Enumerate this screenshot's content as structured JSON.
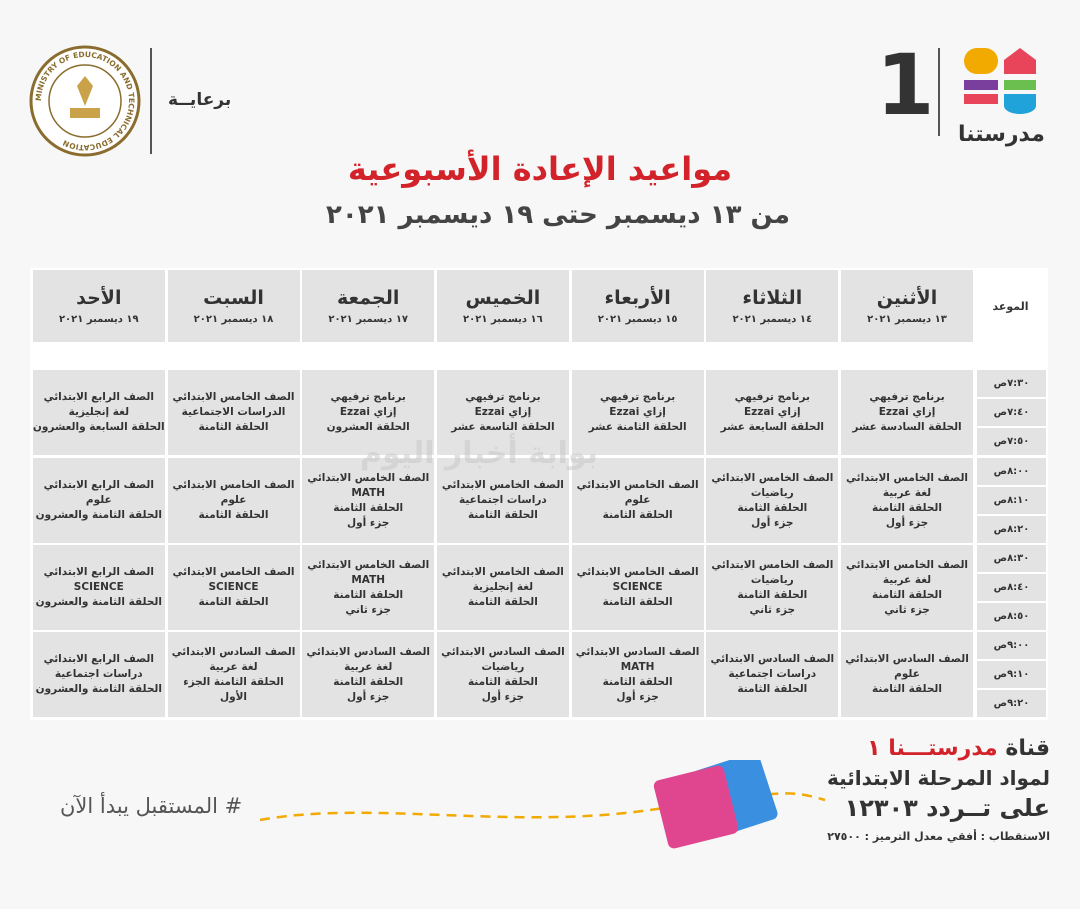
{
  "header": {
    "logo_number": "1",
    "logo_text": "مدرستنا",
    "sponsor": "برعايــة",
    "emblem_text": "MINISTRY OF EDUCATION AND TECHNICAL EDUCATION",
    "title": "مواعيد الإعادة الأسبوعية",
    "subtitle": "من ١٣ ديسمبر حتى ١٩ ديسمبر ٢٠٢١"
  },
  "table": {
    "time_header": "الموعد",
    "days": [
      {
        "name": "الأثنين",
        "date": "١٣ ديسمبر ٢٠٢١"
      },
      {
        "name": "الثلاثاء",
        "date": "١٤ ديسمبر ٢٠٢١"
      },
      {
        "name": "الأربعاء",
        "date": "١٥ ديسمبر ٢٠٢١"
      },
      {
        "name": "الخميس",
        "date": "١٦ ديسمبر ٢٠٢١"
      },
      {
        "name": "الجمعة",
        "date": "١٧ ديسمبر ٢٠٢١"
      },
      {
        "name": "السبت",
        "date": "١٨ ديسمبر ٢٠٢١"
      },
      {
        "name": "الأحد",
        "date": "١٩ ديسمبر ٢٠٢١"
      }
    ],
    "times": [
      "٧:٣٠ص",
      "٧:٤٠ص",
      "٧:٥٠ص",
      "٨:٠٠ص",
      "٨:١٠ص",
      "٨:٢٠ص",
      "٨:٣٠ص",
      "٨:٤٠ص",
      "٨:٥٠ص",
      "٩:٠٠ص",
      "٩:١٠ص",
      "٩:٢٠ص"
    ],
    "blocks": [
      [
        [
          "برنامج ترفيهي",
          "إزاي Ezzai",
          "الحلقة السادسة عشر"
        ],
        [
          "برنامج ترفيهي",
          "إزاي Ezzai",
          "الحلقة السابعة عشر"
        ],
        [
          "برنامج ترفيهي",
          "إزاي Ezzai",
          "الحلقة الثامنة عشر"
        ],
        [
          "برنامج ترفيهي",
          "إزاي Ezzai",
          "الحلقة التاسعة عشر"
        ],
        [
          "برنامج ترفيهي",
          "إزاي Ezzai",
          "الحلقة العشرون"
        ],
        [
          "الصف الخامس الابتدائي",
          "الدراسات الاجتماعية",
          "الحلقة الثامنة"
        ],
        [
          "الصف الرابع الابتدائي",
          "لغة إنجليزية",
          "الحلقة السابعة والعشرون"
        ]
      ],
      [
        [
          "الصف الخامس الابتدائي",
          "لغة عربية",
          "الحلقة الثامنة",
          "جزء أول"
        ],
        [
          "الصف الخامس الابتدائي",
          "رياضيات",
          "الحلقة الثامنة",
          "جزء أول"
        ],
        [
          "الصف الخامس الابتدائي",
          "علوم",
          "الحلقة الثامنة"
        ],
        [
          "الصف الخامس الابتدائي",
          "دراسات اجتماعية",
          "الحلقة الثامنة"
        ],
        [
          "الصف الخامس الابتدائي",
          "MATH",
          "الحلقة الثامنة",
          "جزء أول"
        ],
        [
          "الصف الخامس الابتدائي",
          "علوم",
          "الحلقة الثامنة"
        ],
        [
          "الصف الرابع الابتدائي",
          "علوم",
          "الحلقة الثامنة والعشرون"
        ]
      ],
      [
        [
          "الصف الخامس الابتدائي",
          "لغة عربية",
          "الحلقة الثامنة",
          "جزء ثاني"
        ],
        [
          "الصف الخامس الابتدائي",
          "رياضيات",
          "الحلقة الثامنة",
          "جزء ثاني"
        ],
        [
          "الصف الخامس الابتدائي",
          "SCIENCE",
          "الحلقة الثامنة"
        ],
        [
          "الصف الخامس الابتدائي",
          "لغة إنجليزية",
          "الحلقة الثامنة"
        ],
        [
          "الصف الخامس الابتدائي",
          "MATH",
          "الحلقة الثامنة",
          "جزء ثاني"
        ],
        [
          "الصف الخامس الابتدائي",
          "SCIENCE",
          "الحلقة الثامنة"
        ],
        [
          "الصف الرابع الابتدائي",
          "SCIENCE",
          "الحلقة الثامنة والعشرون"
        ]
      ],
      [
        [
          "الصف السادس الابتدائي",
          "علوم",
          "الحلقة الثامنة"
        ],
        [
          "الصف السادس الابتدائي",
          "دراسات اجتماعية",
          "الحلقة الثامنة"
        ],
        [
          "الصف السادس الابتدائي",
          "MATH",
          "الحلقة الثامنة",
          "جزء أول"
        ],
        [
          "الصف السادس الابتدائي",
          "رياضيات",
          "الحلقة الثامنة",
          "جزء أول"
        ],
        [
          "الصف السادس الابتدائي",
          "لغة عربية",
          "الحلقة الثامنة",
          "جزء أول"
        ],
        [
          "الصف السادس الابتدائي",
          "لغة عربية",
          "الحلقة الثامنة الجزء",
          "الأول"
        ],
        [
          "الصف الرابع الابتدائي",
          "دراسات اجتماعية",
          "الحلقة الثامنة والعشرون"
        ]
      ]
    ]
  },
  "watermark": "بوابة أخبار اليوم",
  "footer": {
    "channel_label": "قناة",
    "channel_name": "مدرستـــنا ١",
    "subjects": "لمواد المرحلة الابتدائية",
    "frequency": "على تــردد ١٢٣٠٣",
    "details": "الاستقطاب : أفقي معدل الترميز : ٢٧٥٠٠",
    "hashtag": "# المستقبل يبدأ الآن"
  }
}
